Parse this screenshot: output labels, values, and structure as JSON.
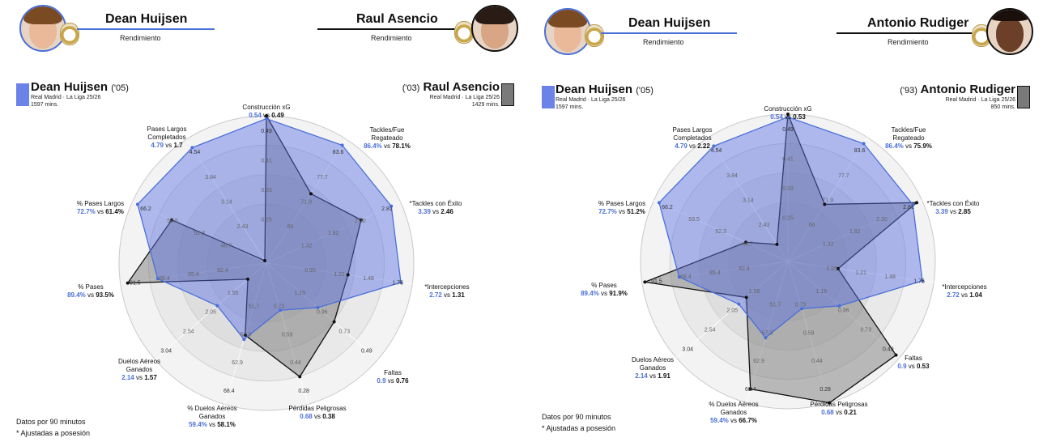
{
  "colors": {
    "player_a": "#4a6fd8",
    "player_b": "#111111",
    "fill_a": "#7b8fe8",
    "fill_b": "#8a8a8a"
  },
  "panels": [
    {
      "header": {
        "player_a": {
          "name": "Dean Huijsen",
          "subtitle": "Rendimiento"
        },
        "player_b": {
          "name": "Raul Asencio",
          "subtitle": "Rendimiento"
        }
      },
      "legend": {
        "player_a": {
          "name": "Dean Huijsen",
          "year": "('05)",
          "team": "Real Madrid · La Liga 25/26",
          "minutes": "1597 mins."
        },
        "player_b": {
          "name": "Raul Asencio",
          "year": "('03)",
          "team": "Real Madrid · La Liga 25/26",
          "minutes": "1429 mins."
        }
      },
      "axes": [
        {
          "label": "Construcción xG",
          "a": "0.54",
          "b": "0.49"
        },
        {
          "label": "Tackles/Fue\nRegateado",
          "a": "86.4%",
          "b": "78.1%"
        },
        {
          "label": "*Tackles con Éxito",
          "a": "3.39",
          "b": "2.46"
        },
        {
          "label": "*Intercepciones",
          "a": "2.72",
          "b": "1.31"
        },
        {
          "label": "Faltas",
          "a": "0.9",
          "b": "0.76"
        },
        {
          "label": "Pérdidas Peligrosas",
          "a": "0.68",
          "b": "0.38"
        },
        {
          "label": "% Duelos Aéreos\nGanados",
          "a": "59.4%",
          "b": "58.1%"
        },
        {
          "label": "Duelos Aéreos\nGanados",
          "a": "2.14",
          "b": "1.57"
        },
        {
          "label": "% Pases",
          "a": "89.4%",
          "b": "93.5%"
        },
        {
          "label": "% Pases Largos",
          "a": "72.7%",
          "b": "61.4%"
        },
        {
          "label": "Pases Largos\nCompletados",
          "a": "4.79",
          "b": "1.7"
        }
      ],
      "footnote": [
        "Datos por 90 minutos",
        "* Ajustadas a posesión"
      ]
    },
    {
      "header": {
        "player_a": {
          "name": "Dean Huijsen",
          "subtitle": "Rendimiento"
        },
        "player_b": {
          "name": "Antonio Rudiger",
          "subtitle": "Rendimiento"
        }
      },
      "legend": {
        "player_a": {
          "name": "Dean Huijsen",
          "year": "('05)",
          "team": "Real Madrid · La Liga 25/26",
          "minutes": "1597 mins."
        },
        "player_b": {
          "name": "Antonio Rudiger",
          "year": "('93)",
          "team": "Real Madrid · La Liga 25/26",
          "minutes": "850 mins."
        }
      },
      "axes": [
        {
          "label": "Construcción xG",
          "a": "0.54",
          "b": "0.53"
        },
        {
          "label": "Tackles/Fue\nRegateado",
          "a": "86.4%",
          "b": "75.9%"
        },
        {
          "label": "*Tackles con Éxito",
          "a": "3.39",
          "b": "2.85"
        },
        {
          "label": "*Intercepciones",
          "a": "2.72",
          "b": "1.04"
        },
        {
          "label": "Faltas",
          "a": "0.9",
          "b": "0.53"
        },
        {
          "label": "Pérdidas Peligrosas",
          "a": "0.68",
          "b": "0.21"
        },
        {
          "label": "% Duelos Aéreos\nGanados",
          "a": "59.4%",
          "b": "66.7%"
        },
        {
          "label": "Duelos Aéreos\nGanados",
          "a": "2.14",
          "b": "1.91"
        },
        {
          "label": "% Pases",
          "a": "89.4%",
          "b": "91.9%"
        },
        {
          "label": "% Pases Largos",
          "a": "72.7%",
          "b": "51.2%"
        },
        {
          "label": "Pases Largos\nCompletados",
          "a": "4.79",
          "b": "2.22"
        }
      ],
      "footnote": [
        "Datos por 90 minutos",
        "* Ajustadas a posesión"
      ]
    }
  ],
  "chart_data": [
    {
      "type": "radar",
      "title": "Dean Huijsen vs Raul Asencio — Rendimiento",
      "categories": [
        "Construcción xG",
        "Tackles/Fue Regateado",
        "*Tackles con Éxito",
        "*Intercepciones",
        "Faltas",
        "Pérdidas Peligrosas",
        "% Duelos Aéreos Ganados",
        "Duelos Aéreos Ganados",
        "% Pases",
        "% Pases Largos",
        "Pases Largos Completados"
      ],
      "series": [
        {
          "name": "Dean Huijsen ('05)",
          "values": [
            0.54,
            86.4,
            3.39,
            2.72,
            0.9,
            0.68,
            59.4,
            2.14,
            89.4,
            72.7,
            4.79
          ],
          "norm": [
            0.98,
            0.95,
            0.93,
            0.92,
            0.45,
            0.32,
            0.53,
            0.43,
            0.74,
            0.96,
            0.93
          ]
        },
        {
          "name": "Raul Asencio ('03)",
          "values": [
            0.49,
            78.1,
            2.46,
            1.31,
            0.76,
            0.38,
            58.1,
            1.57,
            93.5,
            61.4,
            1.7
          ],
          "norm": [
            1.0,
            0.55,
            0.7,
            0.55,
            0.6,
            0.8,
            0.5,
            0.15,
            0.95,
            0.7,
            0.0
          ]
        }
      ],
      "ring_ticks": {
        "Construcción xG": [
          "0.25",
          "0.33",
          "0.41",
          "0.49"
        ],
        "Tackles/Fue Regateado": [
          "66",
          "71.9",
          "77.7",
          "83.6"
        ],
        "*Tackles con Éxito": [
          "1.32",
          "1.82",
          "2.30",
          "2.81"
        ],
        "*Intercepciones": [
          "0.95",
          "1.21",
          "1.48",
          "1.75"
        ],
        "Faltas": [
          "1.19",
          "0.96",
          "0.73",
          "0.49"
        ],
        "Pérdidas Peligrosas": [
          "0.73",
          "0.59",
          "0.44",
          "0.28"
        ],
        "% Duelos Aéreos Ganados": [
          "51.7",
          "57.3",
          "62.9",
          "68.4"
        ],
        "Duelos Aéreos Ganados": [
          "1.55",
          "2.05",
          "2.54",
          "3.04"
        ],
        "% Pases": [
          "82.4",
          "85.4",
          "88.4",
          "91.5"
        ],
        "% Pases Largos": [
          "46.7",
          "52.3",
          "59.5",
          "66.2"
        ],
        "Pases Largos Completados": [
          "2.43",
          "3.14",
          "3.84",
          "4.54"
        ]
      },
      "legend_position": "top"
    },
    {
      "type": "radar",
      "title": "Dean Huijsen vs Antonio Rudiger — Rendimiento",
      "categories": [
        "Construcción xG",
        "Tackles/Fue Regateado",
        "*Tackles con Éxito",
        "*Intercepciones",
        "Faltas",
        "Pérdidas Peligrosas",
        "% Duelos Aéreos Ganados",
        "Duelos Aéreos Ganados",
        "% Pases",
        "% Pases Largos",
        "Pases Largos Completados"
      ],
      "series": [
        {
          "name": "Dean Huijsen ('05)",
          "values": [
            0.54,
            86.4,
            3.39,
            2.72,
            0.9,
            0.68,
            59.4,
            2.14,
            89.4,
            72.7,
            4.79
          ],
          "norm": [
            0.98,
            0.95,
            0.93,
            0.92,
            0.45,
            0.32,
            0.53,
            0.43,
            0.74,
            0.96,
            0.93
          ]
        },
        {
          "name": "Antonio Rudiger ('93)",
          "values": [
            0.53,
            75.9,
            2.85,
            1.04,
            0.53,
            0.21,
            66.7,
            1.91,
            91.9,
            51.2,
            2.22
          ],
          "norm": [
            1.0,
            0.45,
            0.96,
            0.33,
            0.97,
            1.0,
            0.9,
            0.36,
            0.98,
            0.3,
            0.12
          ]
        }
      ],
      "legend_position": "top"
    }
  ]
}
